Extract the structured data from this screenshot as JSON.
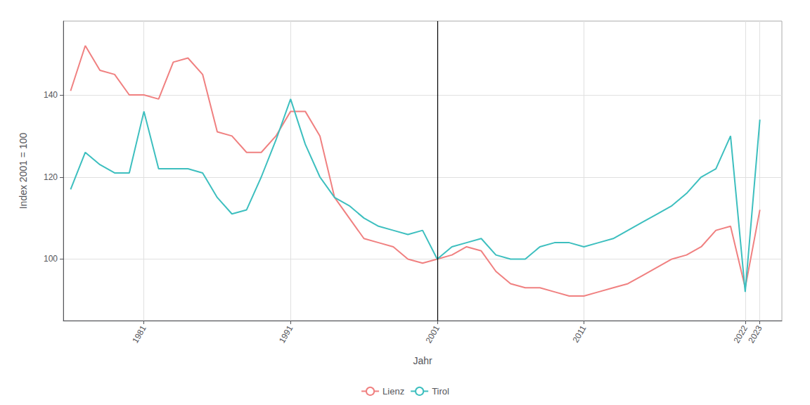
{
  "chart_data": {
    "type": "line",
    "x": [
      1976,
      1977,
      1978,
      1979,
      1980,
      1981,
      1982,
      1983,
      1984,
      1985,
      1986,
      1987,
      1988,
      1989,
      1990,
      1991,
      1992,
      1993,
      1994,
      1995,
      1996,
      1997,
      1998,
      1999,
      2000,
      2001,
      2002,
      2003,
      2004,
      2005,
      2006,
      2007,
      2008,
      2009,
      2010,
      2011,
      2012,
      2013,
      2014,
      2015,
      2016,
      2017,
      2018,
      2019,
      2020,
      2021,
      2022,
      2023
    ],
    "series": [
      {
        "name": "Lienz",
        "color": "#F08080",
        "values": [
          141,
          152,
          146,
          145,
          140,
          140,
          139,
          148,
          149,
          145,
          131,
          130,
          126,
          126,
          130,
          136,
          136,
          130,
          115,
          110,
          105,
          104,
          103,
          100,
          99,
          100,
          101,
          103,
          102,
          97,
          94,
          93,
          93,
          92,
          91,
          91,
          92,
          93,
          94,
          96,
          98,
          100,
          101,
          103,
          107,
          108,
          93,
          112
        ]
      },
      {
        "name": "Tirol",
        "color": "#3DBFBF",
        "values": [
          117,
          126,
          123,
          121,
          121,
          136,
          122,
          122,
          122,
          121,
          115,
          111,
          112,
          120,
          129,
          139,
          128,
          120,
          115,
          113,
          110,
          108,
          107,
          106,
          107,
          100,
          103,
          104,
          105,
          101,
          100,
          100,
          103,
          104,
          104,
          103,
          104,
          105,
          107,
          109,
          111,
          113,
          116,
          120,
          122,
          130,
          92,
          134
        ]
      }
    ],
    "x_label": "Jahr",
    "y_label": "Index 2001 = 100",
    "vline": 2001,
    "xlim": [
      1975.5,
      2024.5
    ],
    "xticks": [
      1981,
      1991,
      2001,
      2011,
      2022,
      2023
    ],
    "ylim": [
      85,
      158
    ],
    "yticks": [
      100,
      120,
      140
    ],
    "grid": true,
    "legend": "bottom"
  }
}
